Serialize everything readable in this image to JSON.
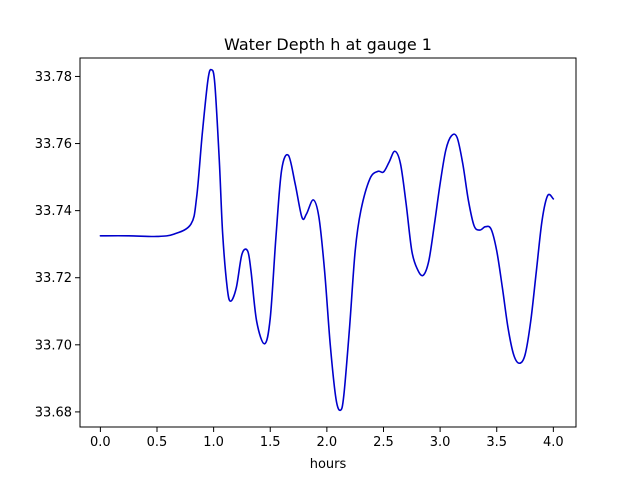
{
  "chart_data": {
    "type": "line",
    "title": "Water Depth h at gauge 1",
    "xlabel": "hours",
    "ylabel": "",
    "xlim": [
      -0.18,
      4.2
    ],
    "ylim": [
      33.6755,
      33.7855
    ],
    "x_ticks": [
      0.0,
      0.5,
      1.0,
      1.5,
      2.0,
      2.5,
      3.0,
      3.5,
      4.0
    ],
    "x_tick_labels": [
      "0.0",
      "0.5",
      "1.0",
      "1.5",
      "2.0",
      "2.5",
      "3.0",
      "3.5",
      "4.0"
    ],
    "y_ticks": [
      33.68,
      33.7,
      33.72,
      33.74,
      33.76,
      33.78
    ],
    "y_tick_labels": [
      "33.68",
      "33.70",
      "33.72",
      "33.74",
      "33.76",
      "33.78"
    ],
    "grid": false,
    "legend": "none",
    "colors": {
      "line": "#0000cc"
    },
    "series": [
      {
        "x": [
          0.0,
          0.25,
          0.5,
          0.65,
          0.8,
          0.85,
          0.9,
          0.95,
          0.98,
          1.01,
          1.05,
          1.08,
          1.12,
          1.15,
          1.2,
          1.25,
          1.3,
          1.33,
          1.38,
          1.45,
          1.5,
          1.55,
          1.6,
          1.66,
          1.72,
          1.78,
          1.82,
          1.88,
          1.93,
          1.98,
          2.03,
          2.08,
          2.12,
          2.15,
          2.2,
          2.25,
          2.3,
          2.38,
          2.45,
          2.5,
          2.55,
          2.6,
          2.65,
          2.7,
          2.75,
          2.8,
          2.85,
          2.9,
          2.95,
          3.0,
          3.05,
          3.1,
          3.15,
          3.2,
          3.25,
          3.3,
          3.35,
          3.4,
          3.45,
          3.5,
          3.55,
          3.6,
          3.65,
          3.7,
          3.75,
          3.8,
          3.85,
          3.9,
          3.95,
          4.0
        ],
        "values": [
          33.7325,
          33.7325,
          33.7323,
          33.733,
          33.736,
          33.744,
          33.763,
          33.779,
          33.782,
          33.778,
          33.755,
          33.733,
          33.717,
          33.713,
          33.717,
          33.727,
          33.728,
          33.722,
          33.707,
          33.7003,
          33.708,
          33.732,
          33.752,
          33.7565,
          33.748,
          33.738,
          33.739,
          33.7432,
          33.738,
          33.722,
          33.7,
          33.684,
          33.6805,
          33.685,
          33.705,
          33.728,
          33.74,
          33.7495,
          33.7517,
          33.7515,
          33.7545,
          33.7577,
          33.754,
          33.742,
          33.728,
          33.7225,
          33.7207,
          33.725,
          33.736,
          33.748,
          33.758,
          33.7623,
          33.7618,
          33.754,
          33.743,
          33.7355,
          33.7342,
          33.7352,
          33.7345,
          33.728,
          33.717,
          33.705,
          33.697,
          33.6945,
          33.697,
          33.707,
          33.722,
          33.737,
          33.7445,
          33.7435
        ]
      }
    ]
  }
}
